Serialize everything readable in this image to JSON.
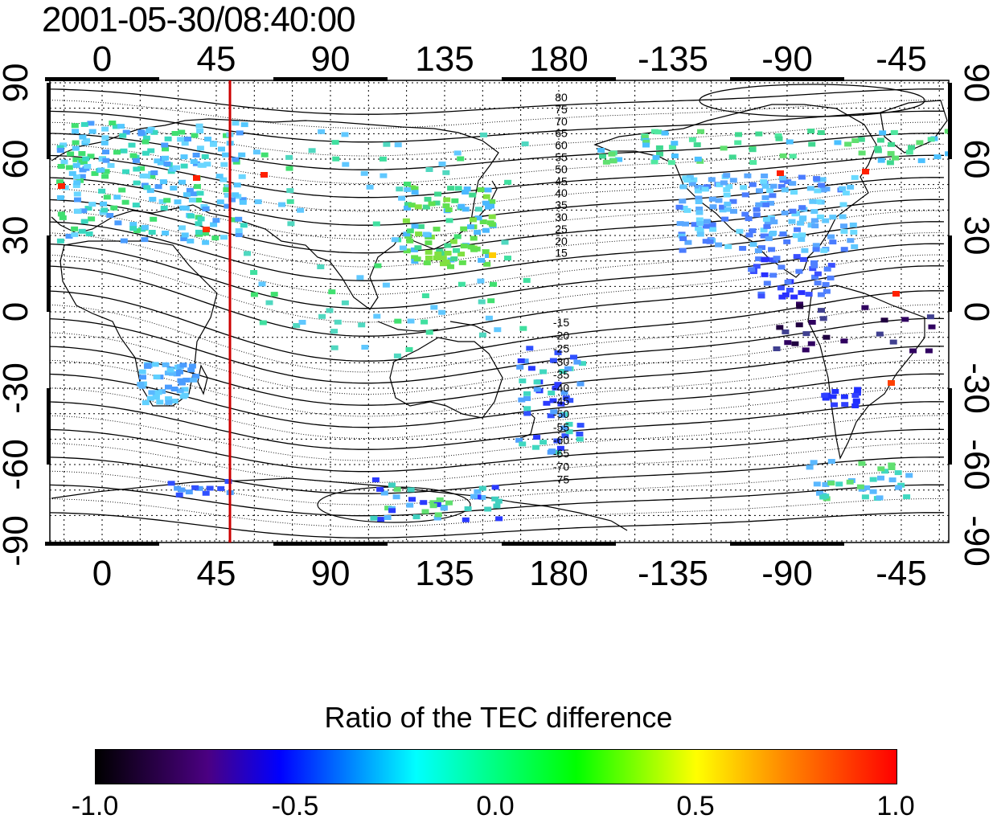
{
  "timestamp": "2001-05-30/08:40:00",
  "top_lon_ticks": [
    "0",
    "45",
    "90",
    "135",
    "180",
    "-135",
    "-90",
    "-45"
  ],
  "bottom_lon_ticks": [
    "0",
    "45",
    "90",
    "135",
    "180",
    "-135",
    "-90",
    "-45"
  ],
  "left_lat_ticks": [
    "90",
    "60",
    "30",
    "0",
    "-30",
    "-60",
    "-90"
  ],
  "right_lat_ticks": [
    "90",
    "60",
    "30",
    "0",
    "-30",
    "-60",
    "-90"
  ],
  "mag_lat_labels_north": [
    "80",
    "75",
    "70",
    "65",
    "60",
    "55",
    "50",
    "45",
    "40",
    "35",
    "30",
    "25",
    "20",
    "15"
  ],
  "mag_lat_labels_south": [
    "-15",
    "-20",
    "-25",
    "-30",
    "-35",
    "-40",
    "-45",
    "-50",
    "-55",
    "-60",
    "-65",
    "-70",
    "-75"
  ],
  "marker_line": {
    "longitude": 50,
    "color": "#cc0000"
  },
  "colorbar": {
    "title": "Ratio of the TEC difference",
    "tick_labels": [
      "-1.0",
      "-0.5",
      "0.0",
      "0.5",
      "1.0"
    ],
    "range": [
      -1.0,
      1.0
    ],
    "colors": [
      "#000000",
      "#4b0082",
      "#0000ff",
      "#00ffff",
      "#00ff00",
      "#ffff00",
      "#ff8800",
      "#ff0000"
    ]
  }
}
